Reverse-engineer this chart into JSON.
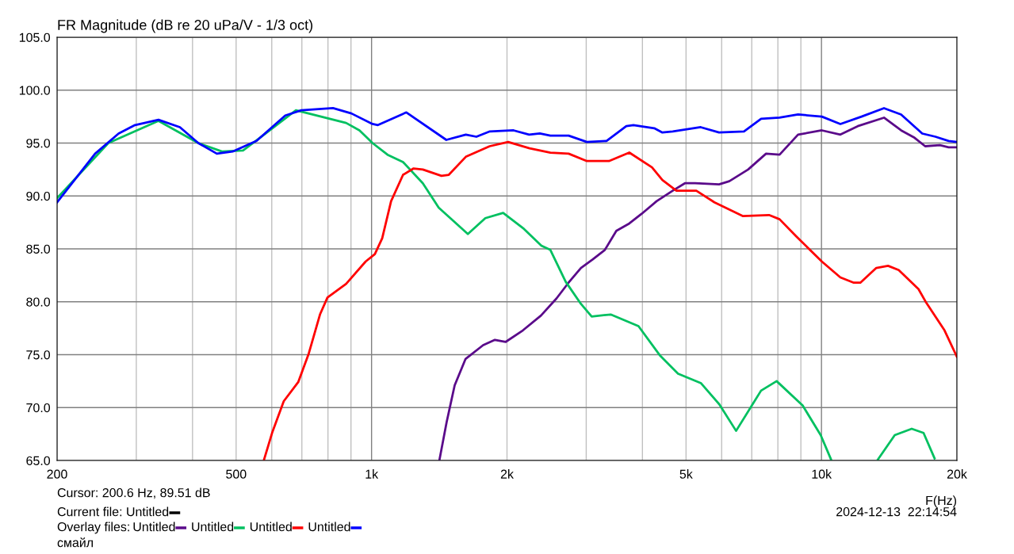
{
  "chart_data": {
    "type": "line",
    "title": "FR Magnitude (dB re 20 uPa/V - 1/3 oct)",
    "xlabel": "F(Hz)",
    "log": "x",
    "grid": true,
    "legend": "bottom left",
    "legend_title": "Overlay files:",
    "line_style": "solid",
    "marker": "none",
    "xlim": [
      200,
      20000
    ],
    "ylim": [
      65,
      105
    ],
    "xticks": [
      200,
      {
        "value": 300,
        "label": null
      },
      {
        "value": 400,
        "label": null
      },
      500,
      {
        "value": 600,
        "label": null
      },
      {
        "value": 700,
        "label": null
      },
      {
        "value": 800,
        "label": null
      },
      {
        "value": 900,
        "label": null
      },
      {
        "value": 1000,
        "label": "1k"
      },
      {
        "value": 2000,
        "label": "2k"
      },
      {
        "value": 3000,
        "label": null
      },
      {
        "value": 4000,
        "label": null
      },
      {
        "value": 5000,
        "label": "5k"
      },
      {
        "value": 6000,
        "label": null
      },
      {
        "value": 7000,
        "label": null
      },
      {
        "value": 8000,
        "label": null
      },
      {
        "value": 9000,
        "label": null
      },
      {
        "value": 10000,
        "label": "10k"
      },
      {
        "value": 20000,
        "label": "20k"
      }
    ],
    "yticks": [
      {
        "value": 65,
        "label": "65.0"
      },
      {
        "value": 70,
        "label": "70.0"
      },
      {
        "value": 75,
        "label": "75.0"
      },
      {
        "value": 80,
        "label": "80.0"
      },
      {
        "value": 85,
        "label": "85.0"
      },
      {
        "value": 90,
        "label": "90.0"
      },
      {
        "value": 95,
        "label": "95.0"
      },
      {
        "value": 100,
        "label": "100.0"
      },
      {
        "value": 105,
        "label": "105.0"
      }
    ],
    "annotations": [
      "Cursor: 200.6 Hz, 89.51 dB",
      "Current file: Untitled",
      "смайл",
      "2024-12-13  22:14:54"
    ],
    "series": [
      {
        "name": "Untitled",
        "color": "#5a0a8a",
        "x": [
          1416,
          1468,
          1530,
          1618,
          1770,
          1880,
          1985,
          2170,
          2380,
          2575,
          2740,
          2920,
          3100,
          3300,
          3500,
          3740,
          3980,
          4300,
          4670,
          4970,
          5236,
          5920,
          6240,
          6870,
          7530,
          8070,
          8870,
          10020,
          11015,
          12040,
          13770,
          15030,
          16100,
          17000,
          18330,
          19170,
          20000
        ],
        "values": [
          65.1,
          68.6,
          72.1,
          74.6,
          75.9,
          76.4,
          76.2,
          77.3,
          78.7,
          80.3,
          81.8,
          83.2,
          84.0,
          84.9,
          86.7,
          87.4,
          88.3,
          89.5,
          90.5,
          91.2,
          91.2,
          91.1,
          91.4,
          92.5,
          94.0,
          93.9,
          95.8,
          96.2,
          95.8,
          96.6,
          97.4,
          96.2,
          95.5,
          94.7,
          94.8,
          94.6,
          94.6
        ]
      },
      {
        "name": "Untitled",
        "color": "#00c060",
        "x": [
          200,
          260,
          336,
          412,
          465,
          518,
          577,
          679,
          788,
          878,
          940,
          1005,
          1085,
          1175,
          1300,
          1410,
          1637,
          1790,
          1961,
          2180,
          2385,
          2497,
          2700,
          2920,
          3085,
          3400,
          3920,
          4380,
          4800,
          5400,
          5930,
          6460,
          7340,
          7950,
          9080,
          9960,
          10500,
          12000,
          13350,
          14550,
          15870,
          16860,
          17840
        ],
        "values": [
          89.8,
          95.0,
          97.1,
          95.0,
          94.2,
          94.3,
          95.8,
          98.1,
          97.4,
          96.9,
          96.2,
          95.0,
          93.9,
          93.2,
          91.2,
          88.9,
          86.4,
          87.9,
          88.4,
          86.9,
          85.3,
          84.9,
          81.9,
          79.8,
          78.6,
          78.8,
          77.7,
          74.9,
          73.2,
          72.3,
          70.3,
          67.8,
          71.6,
          72.5,
          70.2,
          67.4,
          65.1,
          null,
          65.1,
          67.4,
          68.0,
          67.6,
          65.2
        ]
      },
      {
        "name": "Untitled",
        "color": "#ff0000",
        "x": [
          577,
          601,
          638,
          687,
          725,
          768,
          798,
          878,
          970,
          1017,
          1056,
          1105,
          1175,
          1240,
          1300,
          1430,
          1485,
          1620,
          1830,
          2012,
          2245,
          2497,
          2742,
          3010,
          3370,
          3740,
          4200,
          4430,
          4760,
          5270,
          5780,
          6680,
          7645,
          8070,
          8780,
          10020,
          11015,
          11800,
          12200,
          13240,
          14060,
          14850,
          16430,
          17100,
          18770,
          20000
        ],
        "values": [
          65.1,
          67.6,
          70.6,
          72.4,
          75.1,
          78.8,
          80.4,
          81.7,
          83.8,
          84.5,
          86.0,
          89.5,
          92.0,
          92.6,
          92.5,
          91.9,
          92.0,
          93.7,
          94.7,
          95.1,
          94.5,
          94.1,
          94.0,
          93.3,
          93.3,
          94.1,
          92.7,
          91.5,
          90.5,
          90.5,
          89.4,
          88.1,
          88.2,
          87.8,
          86.2,
          83.8,
          82.3,
          81.8,
          81.8,
          83.2,
          83.4,
          83.0,
          81.2,
          79.9,
          77.3,
          74.8
        ]
      },
      {
        "name": "Untitled",
        "color": "#0000ff",
        "x": [
          200,
          243,
          274,
          298,
          336,
          375,
          412,
          453,
          491,
          555,
          643,
          698,
          821,
          902,
          1005,
          1033,
          1195,
          1466,
          1620,
          1710,
          1832,
          2068,
          2240,
          2366,
          2497,
          2742,
          3010,
          3328,
          3683,
          3820,
          4250,
          4430,
          4670,
          5390,
          5920,
          6726,
          7342,
          8069,
          8871,
          10020,
          11015,
          12275,
          13770,
          15030,
          16750,
          17920,
          19170,
          20000
        ],
        "values": [
          89.4,
          94.0,
          95.9,
          96.7,
          97.2,
          96.5,
          95.0,
          94.0,
          94.2,
          95.2,
          97.6,
          98.1,
          98.3,
          97.8,
          96.8,
          96.7,
          97.9,
          95.3,
          95.8,
          95.6,
          96.1,
          96.2,
          95.8,
          95.9,
          95.7,
          95.7,
          95.1,
          95.2,
          96.6,
          96.7,
          96.4,
          96.0,
          96.1,
          96.5,
          96.0,
          96.1,
          97.3,
          97.4,
          97.7,
          97.5,
          96.8,
          97.5,
          98.3,
          97.7,
          95.9,
          95.6,
          95.2,
          95.1
        ]
      }
    ]
  }
}
